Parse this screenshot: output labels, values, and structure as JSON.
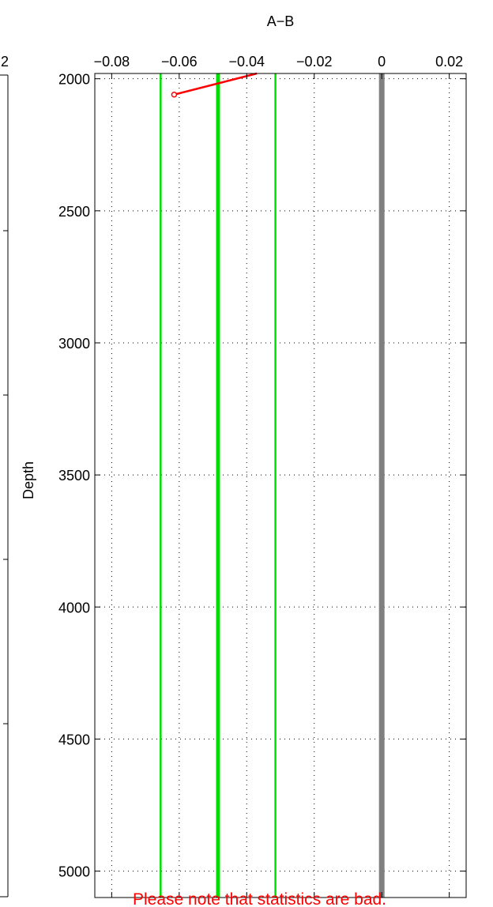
{
  "chart_data": {
    "type": "line",
    "title": "A−B",
    "ylabel": "Depth",
    "xlim": [
      -0.085,
      0.025
    ],
    "ylim": [
      5100,
      1980
    ],
    "y_reversed": true,
    "grid": true,
    "xticks": [
      -0.08,
      -0.06,
      -0.04,
      -0.02,
      0,
      0.02
    ],
    "xtick_labels": [
      "−0.08",
      "−0.06",
      "−0.04",
      "−0.02",
      "0",
      "0.02"
    ],
    "yticks": [
      2000,
      2500,
      3000,
      3500,
      4000,
      4500,
      5000
    ],
    "ytick_labels": [
      "2000",
      "2500",
      "3000",
      "3500",
      "4000",
      "4500",
      "5000"
    ],
    "vertical_lines": [
      {
        "x": -0.0655,
        "color": "#00e000",
        "weight": "thin"
      },
      {
        "x": -0.0485,
        "color": "#00e000",
        "weight": "thick"
      },
      {
        "x": -0.0315,
        "color": "#00e000",
        "weight": "thin"
      },
      {
        "x": 0,
        "color": "#808080",
        "weight": "heavy"
      }
    ],
    "series": [
      {
        "color": "#ff0000",
        "points": [
          {
            "x": -0.0615,
            "y": 2060
          },
          {
            "x": -0.037,
            "y": 1980
          }
        ],
        "marker_at_first": true
      }
    ],
    "annotation": {
      "text": "Please note that statistics are bad.",
      "color": "#ff0000"
    },
    "left_panel_fragment": {
      "label": "2"
    }
  }
}
